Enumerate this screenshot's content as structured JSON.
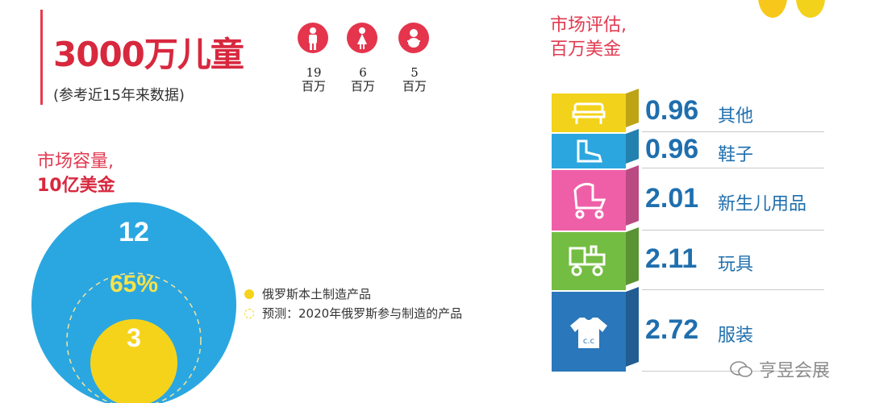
{
  "headline": "3000万儿童",
  "headline_note": "(参考近15年来数据)",
  "children_groups": [
    {
      "icon": "boy-icon",
      "value": "19",
      "unit": "百万"
    },
    {
      "icon": "girl-icon",
      "value": "6",
      "unit": "百万"
    },
    {
      "icon": "baby-icon",
      "value": "5",
      "unit": "百万"
    }
  ],
  "market_capacity": {
    "title_line1": "市场容量,",
    "title_line2": "10亿美金",
    "outer_value": "12",
    "percent_label": "65%",
    "inner_value": "3"
  },
  "legend": [
    {
      "label": "俄罗斯本土制造产品",
      "color": "#f6d31b",
      "style": "filled"
    },
    {
      "label": "预测：2020年俄罗斯参与制造的产品",
      "color": "#f6d31b",
      "style": "dashed"
    }
  ],
  "market_eval": {
    "title_line1": "市场评估,",
    "title_line2": "百万美金"
  },
  "chart_data": {
    "type": "bar",
    "title": "市场评估,百万美金",
    "categories": [
      "其他",
      "鞋子",
      "新生儿用品",
      "玩具",
      "服装"
    ],
    "values": [
      0.96,
      0.96,
      2.01,
      2.11,
      2.72
    ],
    "value_labels": [
      "0.96",
      "0.96",
      "2.01",
      "2.11",
      "2.72"
    ],
    "colors": [
      "#f3d21b",
      "#2ca6df",
      "#ef5fa7",
      "#74bd43",
      "#2a77bb"
    ],
    "icons": [
      "chair-icon",
      "boot-icon",
      "stroller-icon",
      "toy-truck-icon",
      "tshirt-icon"
    ],
    "stacked": true
  },
  "colors": {
    "accent_red": "#e23a50",
    "circle_blue": "#2aa7e1",
    "circle_yellow": "#f6d31b",
    "value_blue": "#1f6fae"
  },
  "watermark": "亨昱会展"
}
